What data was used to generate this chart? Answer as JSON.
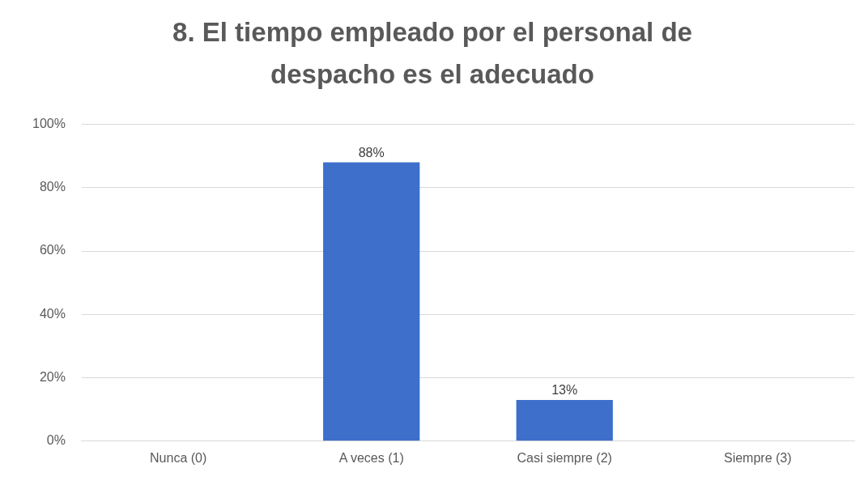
{
  "chart_data": {
    "type": "bar",
    "title": "8. El tiempo empleado por el personal de despacho es el adecuado",
    "categories": [
      "Nunca (0)",
      "A veces (1)",
      "Casi siempre (2)",
      "Siempre (3)"
    ],
    "values": [
      0,
      88,
      13,
      0
    ],
    "value_labels": [
      null,
      "88%",
      "13%",
      null
    ],
    "color": "#3d6fcb",
    "ylim": [
      0,
      100
    ],
    "yticks": [
      {
        "value": 0,
        "label": "0%"
      },
      {
        "value": 20,
        "label": "20%"
      },
      {
        "value": 40,
        "label": "40%"
      },
      {
        "value": 60,
        "label": "60%"
      },
      {
        "value": 80,
        "label": "80%"
      },
      {
        "value": 100,
        "label": "100%"
      }
    ],
    "grid": "y",
    "legend": false
  }
}
